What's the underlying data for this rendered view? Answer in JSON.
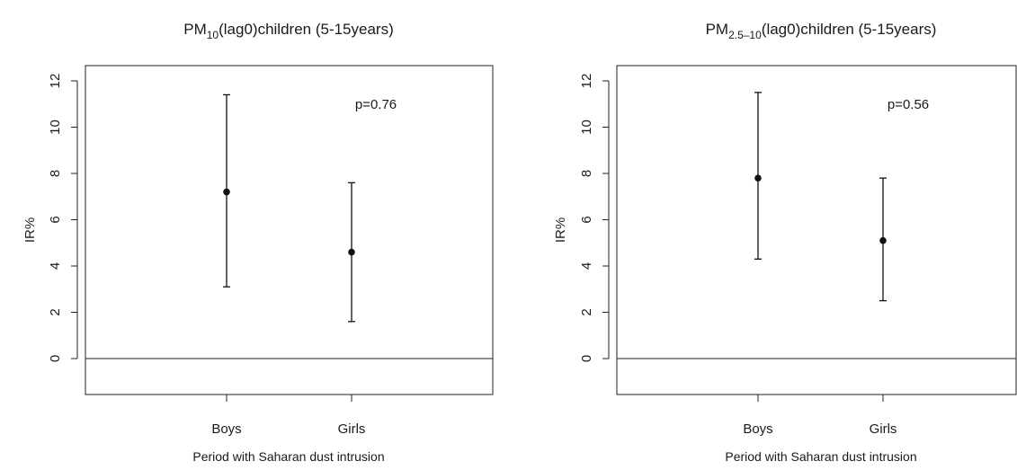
{
  "chart_data": [
    {
      "type": "scatter",
      "title": {
        "prefix": "PM",
        "subscript": "10",
        "suffix": "(lag0)children (5-15years)"
      },
      "xlabel": "Period with Saharan dust intrusion",
      "ylabel": "IR%",
      "categories": [
        "Boys",
        "Girls"
      ],
      "points": [
        {
          "category": "Boys",
          "estimate": 7.2,
          "lower": 3.1,
          "upper": 11.4
        },
        {
          "category": "Girls",
          "estimate": 4.6,
          "lower": 1.6,
          "upper": 7.6
        }
      ],
      "annotation": "p=0.76",
      "y_ticks": [
        "0",
        "2",
        "4",
        "6",
        "8",
        "10",
        "12"
      ],
      "ylim": [
        -1.5,
        12.5
      ],
      "reference_line_y": 0,
      "grid": false
    },
    {
      "type": "scatter",
      "title": {
        "prefix": "PM",
        "subscript": "2.5–10",
        "suffix": "(lag0)children (5-15years)"
      },
      "xlabel": "Period with Saharan dust intrusion",
      "ylabel": "IR%",
      "categories": [
        "Boys",
        "Girls"
      ],
      "points": [
        {
          "category": "Boys",
          "estimate": 7.8,
          "lower": 4.3,
          "upper": 11.5
        },
        {
          "category": "Girls",
          "estimate": 5.1,
          "lower": 2.5,
          "upper": 7.8
        }
      ],
      "annotation": "p=0.56",
      "y_ticks": [
        "0",
        "2",
        "4",
        "6",
        "8",
        "10",
        "12"
      ],
      "ylim": [
        -1.5,
        12.5
      ],
      "reference_line_y": 0,
      "grid": false
    }
  ]
}
